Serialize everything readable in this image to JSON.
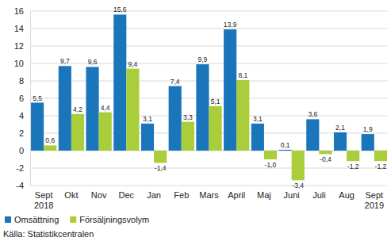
{
  "chart_data": {
    "type": "bar",
    "categories": [
      "Sept 2018",
      "Okt",
      "Nov",
      "Dec",
      "Jan",
      "Feb",
      "Mars",
      "April",
      "Maj",
      "Juni",
      "Juli",
      "Aug",
      "Sept 2019"
    ],
    "series": [
      {
        "name": "Omsättning",
        "color": "#1a75bb",
        "values": [
          5.5,
          9.7,
          9.6,
          15.6,
          3.1,
          7.4,
          9.9,
          13.9,
          3.1,
          0.1,
          3.6,
          2.1,
          1.9
        ],
        "value_labels": [
          "5,5",
          "9,7",
          "9,6",
          "15,6",
          "3,1",
          "7,4",
          "9,9",
          "13,9",
          "3,1",
          "0,1",
          "3,6",
          "2,1",
          "1,9"
        ]
      },
      {
        "name": "Försäljningsvolym",
        "color": "#a9cd3b",
        "values": [
          0.6,
          4.2,
          4.4,
          9.4,
          -1.4,
          3.3,
          5.1,
          8.1,
          -1.0,
          -3.4,
          -0.4,
          -1.2,
          -1.2
        ],
        "value_labels": [
          "0,6",
          "4,2",
          "4,4",
          "9,4",
          "-1,4",
          "3,3",
          "5,1",
          "8,1",
          "-1,0",
          "-3,4",
          "-0,4",
          "-1,2",
          "-1,2"
        ]
      }
    ],
    "ylim": [
      -4,
      16
    ],
    "yticks": [
      -4,
      -2,
      0,
      2,
      4,
      6,
      8,
      10,
      12,
      14,
      16
    ],
    "grid": true,
    "data_labels": true,
    "legend": "bottom-left",
    "source": "Källa: Statistikcentralen"
  }
}
